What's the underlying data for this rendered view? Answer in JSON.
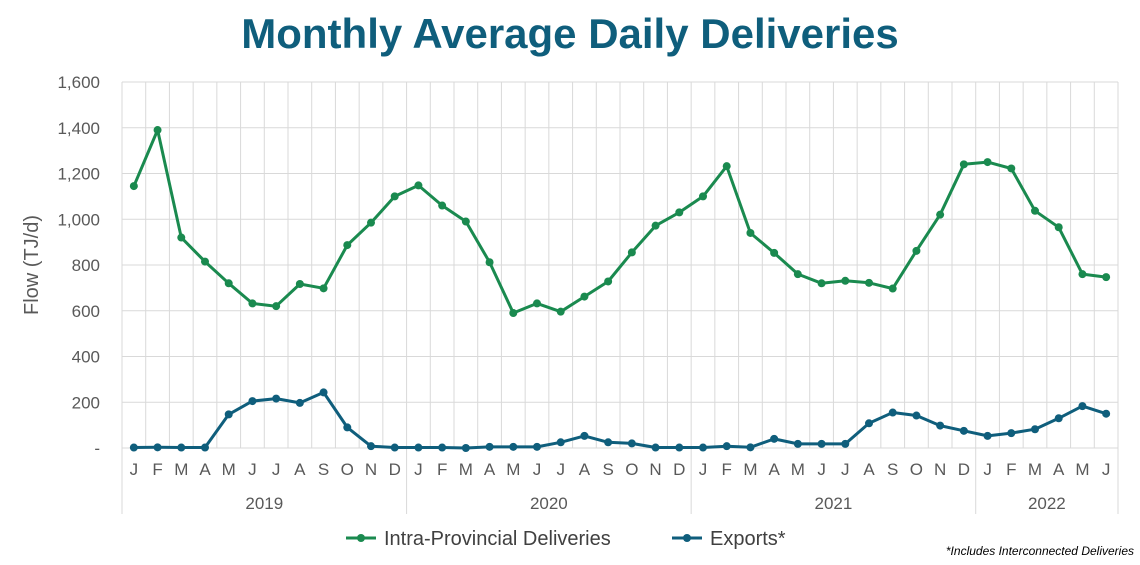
{
  "chart_data": {
    "type": "line",
    "title": "Monthly Average Daily Deliveries",
    "ylabel": "Flow (TJ/d)",
    "ylim": [
      0,
      1600
    ],
    "yticks": [
      0,
      200,
      400,
      600,
      800,
      1000,
      1200,
      1400,
      1600
    ],
    "ytick_labels": [
      "-",
      "200",
      "400",
      "600",
      "800",
      "1,000",
      "1,200",
      "1,400",
      "1,600"
    ],
    "grid": true,
    "legend_position": "bottom",
    "month_labels": [
      "J",
      "F",
      "M",
      "A",
      "M",
      "J",
      "J",
      "A",
      "S",
      "O",
      "N",
      "D",
      "J",
      "F",
      "M",
      "A",
      "M",
      "J",
      "J",
      "A",
      "S",
      "O",
      "N",
      "D",
      "J",
      "F",
      "M",
      "A",
      "M",
      "J",
      "J",
      "A",
      "S",
      "O",
      "N",
      "D",
      "J",
      "F",
      "M",
      "A",
      "M",
      "J"
    ],
    "years": [
      {
        "label": "2019",
        "months": 12
      },
      {
        "label": "2020",
        "months": 12
      },
      {
        "label": "2021",
        "months": 12
      },
      {
        "label": "2022",
        "months": 6
      }
    ],
    "series": [
      {
        "name": "Intra-Provincial Deliveries",
        "color": "#1a8a4f",
        "values": [
          1145,
          1390,
          920,
          815,
          720,
          632,
          620,
          717,
          698,
          887,
          985,
          1100,
          1148,
          1060,
          990,
          812,
          590,
          632,
          596,
          662,
          728,
          855,
          972,
          1030,
          1100,
          1232,
          940,
          853,
          760,
          720,
          731,
          722,
          697,
          862,
          1020,
          1240,
          1250,
          1222,
          1037,
          965,
          760,
          747
        ]
      },
      {
        "name": "Exports*",
        "color": "#0f5e7c",
        "values": [
          2,
          3,
          2,
          2,
          147,
          205,
          216,
          197,
          243,
          90,
          8,
          2,
          2,
          2,
          0,
          5,
          5,
          5,
          25,
          53,
          25,
          20,
          2,
          2,
          2,
          8,
          3,
          40,
          18,
          18,
          18,
          108,
          155,
          142,
          98,
          75,
          53,
          65,
          82,
          130,
          183,
          150
        ]
      }
    ]
  },
  "footnote": "*Includes Interconnected Deliveries"
}
